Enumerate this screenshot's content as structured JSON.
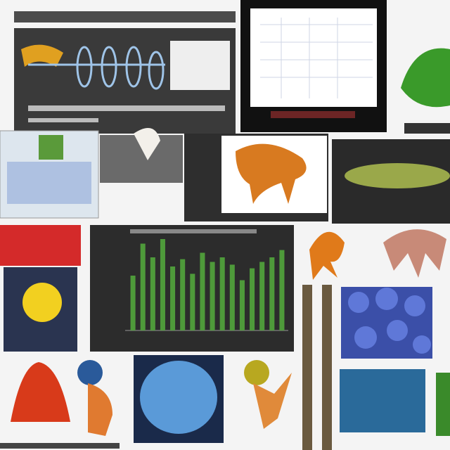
{
  "bar_panel": {
    "type": "bar",
    "values": [
      60,
      95,
      80,
      100,
      70,
      78,
      62,
      85,
      75,
      80,
      72,
      55,
      68,
      75,
      80,
      88
    ],
    "ylim": [
      0,
      100
    ],
    "color": "#4e9a3a"
  }
}
